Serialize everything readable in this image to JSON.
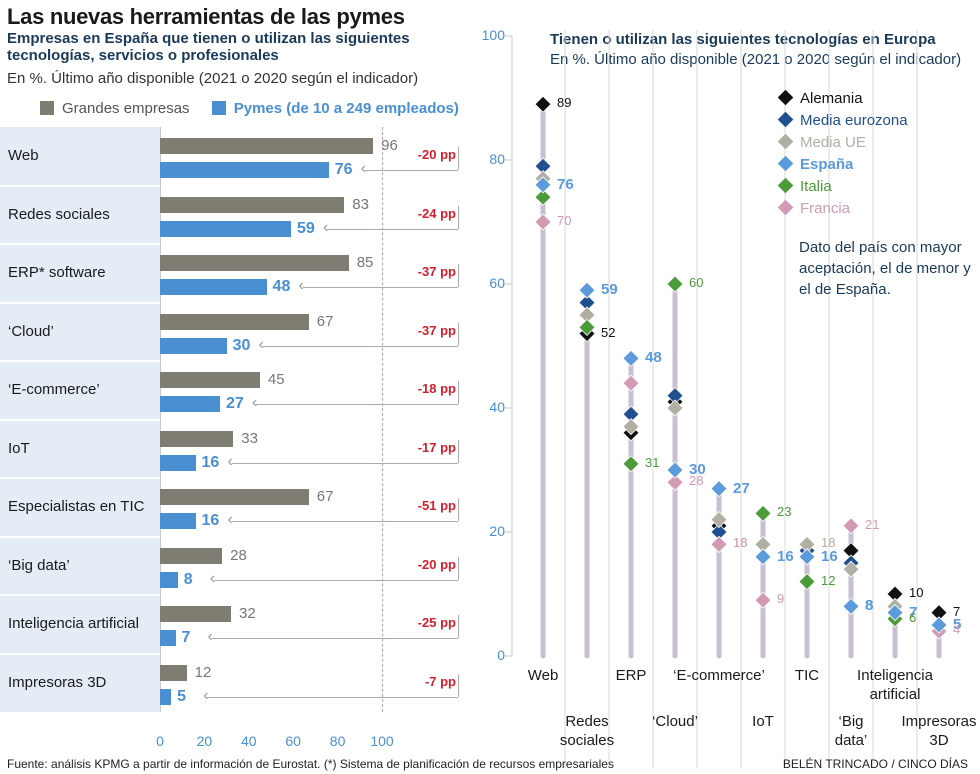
{
  "title": "Las nuevas herramientas de las pymes",
  "left": {
    "subtitle": "Empresas en España que tienen o utilizan las siguientes tecnologías, servicios o profesionales",
    "note": "En %. Último año disponible (2021 o 2020 según el indicador)",
    "legend_large": "Grandes empresas",
    "legend_sme": "Pymes (de 10 a 249 empleados)"
  },
  "right": {
    "title": "Tienen o utilizan las siguientes tecnologías en Europa",
    "note": "En %. Último año disponible (2021 o 2020 según el indicador)",
    "annotation": "Dato del país con mayor aceptación, el de menor y el de España."
  },
  "colors": {
    "large": "#7f7d71",
    "sme": "#4a8fd1",
    "diff": "#d0202f",
    "Alemania": "#111111",
    "Media eurozona": "#1f4f8f",
    "Media UE": "#b1aea4",
    "España": "#5b9bdb",
    "Italia": "#4c9b3a",
    "Francia": "#d29ab3"
  },
  "chart_data": [
    {
      "type": "bar",
      "orientation": "horizontal",
      "categories": [
        "Web",
        "Redes sociales",
        "ERP* software",
        "‘Cloud’",
        "‘E-commerce’",
        "IoT",
        "Especialistas en TIC",
        "‘Big data’",
        "Inteligencia artificial",
        "Impresoras 3D"
      ],
      "series": [
        {
          "name": "Grandes empresas",
          "values": [
            96,
            83,
            85,
            67,
            45,
            33,
            67,
            28,
            32,
            12
          ]
        },
        {
          "name": "Pymes (de 10 a 249 empleados)",
          "values": [
            76,
            59,
            48,
            30,
            27,
            16,
            16,
            8,
            7,
            5
          ]
        }
      ],
      "differences": [
        "-20 pp",
        "-24 pp",
        "-37 pp",
        "-37 pp",
        "-18 pp",
        "-17 pp",
        "-51 pp",
        "-20 pp",
        "-25 pp",
        "-7 pp"
      ],
      "xticks": [
        "0",
        "20",
        "40",
        "60",
        "80",
        "100"
      ],
      "xlim": [
        0,
        100
      ]
    },
    {
      "type": "scatter",
      "categories": [
        "Web",
        "Redes sociales",
        "ERP",
        "‘Cloud’",
        "‘E-commerce’",
        "IoT",
        "TIC",
        "‘Big data’",
        "Inteligencia artificial",
        "Impresoras 3D"
      ],
      "series": [
        {
          "name": "Alemania",
          "values": [
            89,
            52,
            36,
            41,
            21,
            18,
            17,
            17,
            10,
            7
          ]
        },
        {
          "name": "Media eurozona",
          "values": [
            79,
            57,
            39,
            42,
            20,
            18,
            17,
            15,
            8,
            5
          ]
        },
        {
          "name": "Media UE",
          "values": [
            77,
            55,
            37,
            40,
            22,
            18,
            18,
            14,
            8,
            5
          ]
        },
        {
          "name": "España",
          "values": [
            76,
            59,
            48,
            30,
            27,
            16,
            16,
            8,
            7,
            5
          ]
        },
        {
          "name": "Italia",
          "values": [
            74,
            53,
            31,
            60,
            18,
            23,
            12,
            8,
            6,
            5
          ]
        },
        {
          "name": "Francia",
          "values": [
            70,
            59,
            44,
            28,
            18,
            9,
            16,
            21,
            7,
            4
          ]
        }
      ],
      "value_labels": [
        [
          "89",
          "76",
          "70"
        ],
        [
          "59",
          "52"
        ],
        [
          "48",
          "31"
        ],
        [
          "60",
          "30",
          "28"
        ],
        [
          "27",
          "18",
          "18"
        ],
        [
          "23",
          "16",
          "9"
        ],
        [
          "18",
          "16",
          "12"
        ],
        [
          "21",
          "8",
          "8"
        ],
        [
          "10",
          "7",
          "6"
        ],
        [
          "7",
          "5",
          "4"
        ]
      ],
      "yticks": [
        "0",
        "20",
        "40",
        "60",
        "80",
        "100"
      ],
      "ylim": [
        0,
        100
      ]
    }
  ],
  "footer": {
    "source": "Fuente: análisis KPMG a partir de información de Eurostat. (*) Sistema de planificación de recursos empresariales",
    "credit": "BELÉN TRINCADO / CINCO DÍAS"
  }
}
